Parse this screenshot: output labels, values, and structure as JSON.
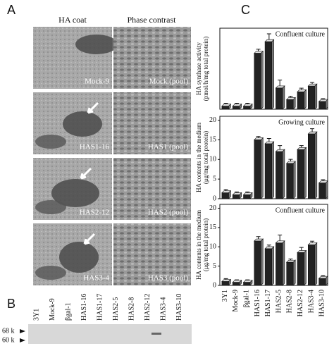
{
  "panel_a": {
    "label": "A",
    "columns": [
      "HA coat",
      "Phase contrast"
    ],
    "rows": [
      {
        "left": "Mock-9",
        "right": "Mock (pool)"
      },
      {
        "left": "HAS1-16",
        "right": "HAS1 (pool)"
      },
      {
        "left": "HAS2-12",
        "right": "HAS2 (pool)"
      },
      {
        "left": "HAS3-4",
        "right": "HAS3 (pool)"
      }
    ]
  },
  "panel_b": {
    "label": "B",
    "lanes": [
      "3Y1",
      "Mock-9",
      "βgal-1",
      "HAS1-16",
      "HAS1-17",
      "HAS2-5",
      "HAS2-8",
      "HAS2-12",
      "HAS3-4",
      "HAS3-10"
    ],
    "markers": [
      "68 k",
      "60 k"
    ]
  },
  "panel_c": {
    "label": "C"
  },
  "chart_data": [
    {
      "type": "bar",
      "title": "Confluent culture",
      "ylabel": [
        "HA synthase activity",
        "(pmol/h/mg total protein)"
      ],
      "color": "#222222",
      "values": [
        0.8,
        0.8,
        0.8,
        14.5,
        17.5,
        5.5,
        2.5,
        4.5,
        6,
        2
      ],
      "errors": [
        0.2,
        0.2,
        0.2,
        0.5,
        1.5,
        1.5,
        0.3,
        0.4,
        0.4,
        0.2
      ],
      "ylim": [
        0,
        21
      ]
    },
    {
      "type": "bar",
      "title": "Growing culture",
      "ylabel": [
        "HA contents in the medium",
        "(μg/mg total protein)"
      ],
      "color": "#222222",
      "values": [
        1.5,
        1,
        1,
        15,
        14,
        12,
        9,
        12.5,
        16.5,
        4
      ],
      "errors": [
        0.3,
        0.2,
        0.2,
        0.3,
        0.8,
        1,
        0.5,
        0.5,
        0.8,
        0.3
      ],
      "ylim": [
        0,
        21
      ],
      "yticks": [
        0,
        5,
        10,
        15,
        20
      ]
    },
    {
      "type": "bar",
      "title": "Confluent culture",
      "ylabel": [
        "HA contents in the medium",
        "(μg/mg total protein)"
      ],
      "color": "#222222",
      "categories": [
        "3Y1",
        "Mock-9",
        "βgal-1",
        "HAS1-16",
        "HAS1-17",
        "HAS2-5",
        "HAS2-8",
        "HAS2-12",
        "HAS3-4",
        "HAS3-10"
      ],
      "values": [
        1,
        0.8,
        0.8,
        11.5,
        9.5,
        11,
        6,
        8.5,
        10.5,
        1.8
      ],
      "errors": [
        0.2,
        0.1,
        0.1,
        0.6,
        0.4,
        1.5,
        0.3,
        0.8,
        0.4,
        0.2
      ],
      "ylim": [
        0,
        21
      ],
      "yticks": [
        0,
        5,
        10,
        15,
        20
      ]
    }
  ]
}
